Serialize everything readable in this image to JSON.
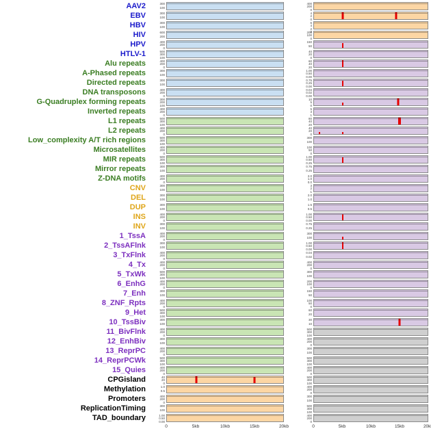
{
  "figure": {
    "label_colors": {
      "virus": "#1a1acb",
      "repeat": "#3a7d22",
      "sv": "#dfa518",
      "chromhmm": "#7c2fbf",
      "other": "#000000"
    },
    "panel_colors": {
      "blue": "#c9dff2",
      "green": "#c9e5b4",
      "orange": "#fcd6a4",
      "purple": "#d9c9e4",
      "gray": "#cfcfcf"
    },
    "spike_color": "#e60000",
    "panel_border": "#8a8a8a"
  },
  "chart_data": {
    "type": "bar",
    "title": "",
    "x_ticks": [
      "0",
      "5kb",
      "10kb",
      "15kb",
      "20kb"
    ],
    "x_range_kb": [
      0,
      20
    ],
    "columns": [
      "left",
      "right"
    ],
    "rows": [
      {
        "label": "AAV2",
        "group": "virus",
        "left": {
          "bg": "blue",
          "ticks": [
            "300",
            "100"
          ],
          "spikes": []
        },
        "right": {
          "bg": "orange",
          "ticks": [
            "400",
            "200",
            "0"
          ],
          "spikes": []
        }
      },
      {
        "label": "EBV",
        "group": "virus",
        "left": {
          "bg": "blue",
          "ticks": [
            "300",
            "100"
          ],
          "spikes": []
        },
        "right": {
          "bg": "orange",
          "ticks": [
            "4",
            "2",
            "0"
          ],
          "spikes": [
            {
              "kb": 5,
              "h": 1,
              "w": 3
            },
            {
              "kb": 14.5,
              "h": 1,
              "w": 3
            }
          ]
        }
      },
      {
        "label": "HBV",
        "group": "virus",
        "left": {
          "bg": "blue",
          "ticks": [
            "300",
            "100"
          ],
          "spikes": []
        },
        "right": {
          "bg": "orange",
          "ticks": [
            "6",
            "4",
            "2",
            "0"
          ],
          "spikes": []
        }
      },
      {
        "label": "HIV",
        "group": "virus",
        "left": {
          "bg": "blue",
          "ticks": [
            "600",
            "200"
          ],
          "spikes": []
        },
        "right": {
          "bg": "orange",
          "ticks": [
            "200",
            "100",
            "0"
          ],
          "spikes": []
        }
      },
      {
        "label": "HPV",
        "group": "virus",
        "left": {
          "bg": "blue",
          "ticks": [
            "400",
            "200",
            "0"
          ],
          "spikes": []
        },
        "right": {
          "bg": "purple",
          "ticks": [
            "150",
            "50"
          ],
          "spikes": [
            {
              "kb": 5,
              "h": 0.7,
              "w": 2
            }
          ]
        }
      },
      {
        "label": "HTLV-1",
        "group": "virus",
        "left": {
          "bg": "blue",
          "ticks": [
            "500",
            "300",
            "100"
          ],
          "spikes": []
        },
        "right": {
          "bg": "purple",
          "ticks": [
            "40",
            "20",
            "0"
          ],
          "spikes": []
        }
      },
      {
        "label": "Alu repeats",
        "group": "repeat",
        "left": {
          "bg": "blue",
          "ticks": [
            "400",
            "200",
            "0"
          ],
          "spikes": []
        },
        "right": {
          "bg": "purple",
          "ticks": [
            "60",
            "40",
            "20"
          ],
          "spikes": [
            {
              "kb": 5,
              "h": 1,
              "w": 2
            }
          ]
        }
      },
      {
        "label": "A-Phased repeats",
        "group": "repeat",
        "left": {
          "bg": "blue",
          "ticks": [
            "300",
            "100"
          ],
          "spikes": []
        },
        "right": {
          "bg": "purple",
          "ticks": [
            "1.00",
            "0.50",
            "0.00"
          ],
          "spikes": []
        }
      },
      {
        "label": "Directed repeats",
        "group": "repeat",
        "left": {
          "bg": "blue",
          "ticks": [
            "300",
            "100"
          ],
          "spikes": []
        },
        "right": {
          "bg": "purple",
          "ticks": [
            "0.75",
            "0.25",
            "0.00"
          ],
          "spikes": [
            {
              "kb": 5,
              "h": 0.8,
              "w": 2
            }
          ]
        }
      },
      {
        "label": "DNA transposons",
        "group": "repeat",
        "left": {
          "bg": "blue",
          "ticks": [
            "400",
            "200",
            "0"
          ],
          "spikes": []
        },
        "right": {
          "bg": "purple",
          "ticks": [
            "0.04",
            "0.02",
            "0.00"
          ],
          "spikes": []
        }
      },
      {
        "label": "G-Quadruplex forming repeats",
        "group": "repeat",
        "left": {
          "bg": "blue",
          "ticks": [
            "300",
            "200",
            "100"
          ],
          "spikes": []
        },
        "right": {
          "bg": "purple",
          "ticks": [
            "10",
            "5",
            "0"
          ],
          "spikes": [
            {
              "kb": 5,
              "h": 0.4,
              "w": 2
            },
            {
              "kb": 14.8,
              "h": 1,
              "w": 3
            }
          ]
        }
      },
      {
        "label": "Inverted repeats",
        "group": "repeat",
        "left": {
          "bg": "blue",
          "ticks": [
            "400",
            "200",
            "0"
          ],
          "spikes": []
        },
        "right": {
          "bg": "purple",
          "ticks": [
            "5",
            "3",
            "1"
          ],
          "spikes": []
        }
      },
      {
        "label": "L1 repeats",
        "group": "repeat",
        "left": {
          "bg": "green",
          "ticks": [
            "500",
            "300",
            "100"
          ],
          "spikes": []
        },
        "right": {
          "bg": "purple",
          "ticks": [
            "80",
            "40",
            "20"
          ],
          "spikes": [
            {
              "kb": 15,
              "h": 1,
              "w": 4
            }
          ]
        }
      },
      {
        "label": "L2 repeats",
        "group": "repeat",
        "left": {
          "bg": "green",
          "ticks": [
            "400",
            "200",
            "0"
          ],
          "spikes": []
        },
        "right": {
          "bg": "purple",
          "ticks": [
            "40",
            "20",
            "0"
          ],
          "spikes": [
            {
              "kb": 1,
              "h": 0.35,
              "w": 2
            },
            {
              "kb": 5,
              "h": 0.3,
              "w": 2
            }
          ]
        }
      },
      {
        "label": "Low_complexity A/T rich regions",
        "group": "repeat",
        "left": {
          "bg": "green",
          "ticks": [
            "500",
            "300",
            "100"
          ],
          "spikes": []
        },
        "right": {
          "bg": "purple",
          "ticks": [
            "300",
            "100"
          ],
          "spikes": []
        }
      },
      {
        "label": "Microsatellites",
        "group": "repeat",
        "left": {
          "bg": "green",
          "ticks": [
            "400",
            "200",
            "0"
          ],
          "spikes": []
        },
        "right": {
          "bg": "purple",
          "ticks": [
            "100",
            "50",
            "0"
          ],
          "spikes": []
        }
      },
      {
        "label": "MIR repeats",
        "group": "repeat",
        "left": {
          "bg": "green",
          "ticks": [
            "500",
            "300",
            "100"
          ],
          "spikes": []
        },
        "right": {
          "bg": "purple",
          "ticks": [
            "1.00",
            "0.50",
            "0.25"
          ],
          "spikes": [
            {
              "kb": 5,
              "h": 0.85,
              "w": 2
            }
          ]
        }
      },
      {
        "label": "Mirror repeats",
        "group": "repeat",
        "left": {
          "bg": "green",
          "ticks": [
            "300",
            "100"
          ],
          "spikes": []
        },
        "right": {
          "bg": "purple",
          "ticks": [
            "0.75",
            "0.25"
          ],
          "spikes": []
        }
      },
      {
        "label": "Z-DNA motifs",
        "group": "repeat",
        "left": {
          "bg": "green",
          "ticks": [
            "400",
            "200",
            "0"
          ],
          "spikes": []
        },
        "right": {
          "bg": "purple",
          "ticks": [
            "2.0",
            "1.0",
            "0.0"
          ],
          "spikes": []
        }
      },
      {
        "label": "CNV",
        "group": "sv",
        "left": {
          "bg": "green",
          "ticks": [
            "300",
            "100"
          ],
          "spikes": []
        },
        "right": {
          "bg": "purple",
          "ticks": [
            "3",
            "2",
            "1"
          ],
          "spikes": []
        }
      },
      {
        "label": "DEL",
        "group": "sv",
        "left": {
          "bg": "green",
          "ticks": [
            "300",
            "100"
          ],
          "spikes": []
        },
        "right": {
          "bg": "purple",
          "ticks": [
            "2.0",
            "1.0"
          ],
          "spikes": []
        }
      },
      {
        "label": "DUP",
        "group": "sv",
        "left": {
          "bg": "green",
          "ticks": [
            "300",
            "100"
          ],
          "spikes": []
        },
        "right": {
          "bg": "purple",
          "ticks": [
            "1.5",
            "0.5"
          ],
          "spikes": []
        }
      },
      {
        "label": "INS",
        "group": "sv",
        "left": {
          "bg": "green",
          "ticks": [
            "400",
            "200",
            "0"
          ],
          "spikes": []
        },
        "right": {
          "bg": "purple",
          "ticks": [
            "1.00",
            "0.50",
            "0.00"
          ],
          "spikes": [
            {
              "kb": 5,
              "h": 0.9,
              "w": 2
            }
          ]
        }
      },
      {
        "label": "INV",
        "group": "sv",
        "left": {
          "bg": "green",
          "ticks": [
            "300",
            "100"
          ],
          "spikes": []
        },
        "right": {
          "bg": "purple",
          "ticks": [
            "0.75",
            "0.25"
          ],
          "spikes": []
        }
      },
      {
        "label": "1_TssA",
        "group": "chromhmm",
        "left": {
          "bg": "green",
          "ticks": [
            "400",
            "200",
            "0"
          ],
          "spikes": []
        },
        "right": {
          "bg": "purple",
          "ticks": [
            "300",
            "100"
          ],
          "spikes": [
            {
              "kb": 5,
              "h": 0.45,
              "w": 2
            }
          ]
        }
      },
      {
        "label": "2_TssAFlnk",
        "group": "chromhmm",
        "left": {
          "bg": "green",
          "ticks": [
            "300",
            "100"
          ],
          "spikes": []
        },
        "right": {
          "bg": "purple",
          "ticks": [
            "1.00",
            "0.50",
            "0.00"
          ],
          "spikes": [
            {
              "kb": 5,
              "h": 1,
              "w": 2
            }
          ]
        }
      },
      {
        "label": "3_TxFlnk",
        "group": "chromhmm",
        "left": {
          "bg": "green",
          "ticks": [
            "400",
            "200",
            "0"
          ],
          "spikes": []
        },
        "right": {
          "bg": "purple",
          "ticks": [
            "0.04",
            "0.02"
          ],
          "spikes": []
        }
      },
      {
        "label": "4_Tx",
        "group": "chromhmm",
        "left": {
          "bg": "green",
          "ticks": [
            "400",
            "200",
            "0"
          ],
          "spikes": []
        },
        "right": {
          "bg": "purple",
          "ticks": [
            "400",
            "200",
            "0"
          ],
          "spikes": []
        }
      },
      {
        "label": "5_TxWk",
        "group": "chromhmm",
        "left": {
          "bg": "green",
          "ticks": [
            "500",
            "300",
            "100"
          ],
          "spikes": []
        },
        "right": {
          "bg": "purple",
          "ticks": [
            "300",
            "100"
          ],
          "spikes": []
        }
      },
      {
        "label": "6_EnhG",
        "group": "chromhmm",
        "left": {
          "bg": "green",
          "ticks": [
            "400",
            "200",
            "0"
          ],
          "spikes": []
        },
        "right": {
          "bg": "purple",
          "ticks": [
            "200",
            "100",
            "0"
          ],
          "spikes": []
        }
      },
      {
        "label": "7_Enh",
        "group": "chromhmm",
        "left": {
          "bg": "green",
          "ticks": [
            "300",
            "100"
          ],
          "spikes": []
        },
        "right": {
          "bg": "purple",
          "ticks": [
            "150",
            "50"
          ],
          "spikes": []
        }
      },
      {
        "label": "8_ZNF_Rpts",
        "group": "chromhmm",
        "left": {
          "bg": "green",
          "ticks": [
            "400",
            "200",
            "0"
          ],
          "spikes": []
        },
        "right": {
          "bg": "purple",
          "ticks": [
            "100",
            "50",
            "0"
          ],
          "spikes": []
        }
      },
      {
        "label": "9_Het",
        "group": "chromhmm",
        "left": {
          "bg": "green",
          "ticks": [
            "500",
            "300",
            "100"
          ],
          "spikes": []
        },
        "right": {
          "bg": "purple",
          "ticks": [
            "60",
            "20"
          ],
          "spikes": []
        }
      },
      {
        "label": "10_TssBiv",
        "group": "chromhmm",
        "left": {
          "bg": "green",
          "ticks": [
            "300",
            "100"
          ],
          "spikes": []
        },
        "right": {
          "bg": "purple",
          "ticks": [
            "30",
            "10"
          ],
          "spikes": [
            {
              "kb": 15,
              "h": 1,
              "w": 3
            }
          ]
        }
      },
      {
        "label": "11_BivFlnk",
        "group": "chromhmm",
        "left": {
          "bg": "green",
          "ticks": [
            "400",
            "200",
            "0"
          ],
          "spikes": []
        },
        "right": {
          "bg": "gray",
          "ticks": [
            "500",
            "300",
            "100"
          ],
          "spikes": []
        }
      },
      {
        "label": "12_EnhBiv",
        "group": "chromhmm",
        "left": {
          "bg": "green",
          "ticks": [
            "300",
            "100"
          ],
          "spikes": []
        },
        "right": {
          "bg": "gray",
          "ticks": [
            "400",
            "200",
            "0"
          ],
          "spikes": []
        }
      },
      {
        "label": "13_ReprPC",
        "group": "chromhmm",
        "left": {
          "bg": "green",
          "ticks": [
            "400",
            "200",
            "0"
          ],
          "spikes": []
        },
        "right": {
          "bg": "gray",
          "ticks": [
            "300",
            "100"
          ],
          "spikes": []
        }
      },
      {
        "label": "14_ReprPCWk",
        "group": "chromhmm",
        "left": {
          "bg": "green",
          "ticks": [
            "500",
            "300",
            "100"
          ],
          "spikes": []
        },
        "right": {
          "bg": "gray",
          "ticks": [
            "500",
            "300",
            "100"
          ],
          "spikes": []
        }
      },
      {
        "label": "15_Quies",
        "group": "chromhmm",
        "left": {
          "bg": "green",
          "ticks": [
            "400",
            "200",
            "0"
          ],
          "spikes": []
        },
        "right": {
          "bg": "gray",
          "ticks": [
            "400",
            "200",
            "0"
          ],
          "spikes": []
        }
      },
      {
        "label": "CPGisland",
        "group": "other",
        "left": {
          "bg": "orange",
          "ticks": [
            "40",
            "20",
            "0"
          ],
          "spikes": [
            {
              "kb": 5,
              "h": 1,
              "w": 3
            },
            {
              "kb": 15,
              "h": 0.9,
              "w": 3
            }
          ]
        },
        "right": {
          "bg": "gray",
          "ticks": [
            "500",
            "300",
            "100"
          ],
          "spikes": []
        }
      },
      {
        "label": "Methylation",
        "group": "other",
        "left": {
          "bg": "orange",
          "ticks": [
            "1.0",
            "0.5"
          ],
          "spikes": []
        },
        "right": {
          "bg": "gray",
          "ticks": [
            "400",
            "200",
            "0"
          ],
          "spikes": []
        }
      },
      {
        "label": "Promoters",
        "group": "other",
        "left": {
          "bg": "orange",
          "ticks": [
            "400",
            "200",
            "0"
          ],
          "spikes": []
        },
        "right": {
          "bg": "gray",
          "ticks": [
            "300",
            "100"
          ],
          "spikes": []
        }
      },
      {
        "label": "ReplicationTiming",
        "group": "other",
        "left": {
          "bg": "orange",
          "ticks": [
            "300",
            "100"
          ],
          "spikes": []
        },
        "right": {
          "bg": "gray",
          "ticks": [
            "500",
            "300",
            "100"
          ],
          "spikes": []
        }
      },
      {
        "label": "TAD_boundary",
        "group": "other",
        "left": {
          "bg": "orange",
          "ticks": [
            "1.00",
            "0.50",
            "0.00"
          ],
          "spikes": []
        },
        "right": {
          "bg": "gray",
          "ticks": [
            "400",
            "200",
            "0"
          ],
          "spikes": []
        }
      }
    ]
  }
}
